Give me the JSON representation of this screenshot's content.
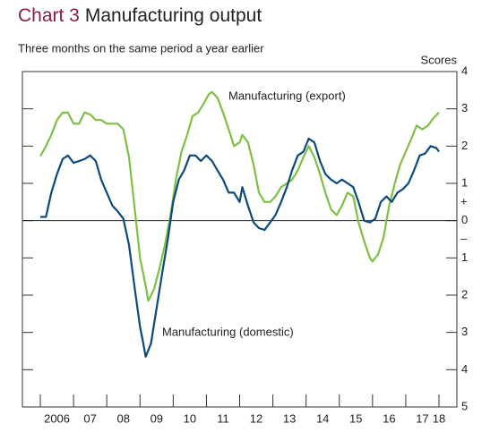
{
  "chart_data": {
    "type": "line",
    "title_number": "Chart 3",
    "title": "Manufacturing output",
    "subtitle": "Three months on the same period a year earlier",
    "y_axis_label": "Scores",
    "positive_sign": "+",
    "negative_sign": "–",
    "xlim": [
      2005.46,
      2018.54
    ],
    "xticks": [
      {
        "value": 2006,
        "label": "2006"
      },
      {
        "value": 2007,
        "label": "07"
      },
      {
        "value": 2008,
        "label": "08"
      },
      {
        "value": 2009,
        "label": "09"
      },
      {
        "value": 2010,
        "label": "10"
      },
      {
        "value": 2011,
        "label": "11"
      },
      {
        "value": 2012,
        "label": "12"
      },
      {
        "value": 2013,
        "label": "13"
      },
      {
        "value": 2014,
        "label": "14"
      },
      {
        "value": 2015,
        "label": "15"
      },
      {
        "value": 2016,
        "label": "16"
      },
      {
        "value": 2017,
        "label": "17"
      },
      {
        "value": 2018,
        "label": "18"
      }
    ],
    "ylim": [
      -5,
      4
    ],
    "yticks": [
      4,
      3,
      2,
      1,
      0,
      {
        "value": -1,
        "label": "1"
      },
      {
        "value": -2,
        "label": "2"
      },
      {
        "value": -3,
        "label": "3"
      },
      {
        "value": -4,
        "label": "4"
      },
      {
        "value": -5,
        "label": "5"
      }
    ],
    "series": [
      {
        "name": "Manufacturing (export)",
        "color": "#7dc142",
        "x": [
          2006.0,
          2006.17,
          2006.33,
          2006.5,
          2006.67,
          2006.83,
          2007.0,
          2007.17,
          2007.33,
          2007.5,
          2007.67,
          2007.83,
          2008.0,
          2008.17,
          2008.33,
          2008.5,
          2008.67,
          2008.83,
          2009.0,
          2009.17,
          2009.25,
          2009.42,
          2009.58,
          2009.75,
          2009.92,
          2010.08,
          2010.25,
          2010.42,
          2010.58,
          2010.75,
          2010.92,
          2011.08,
          2011.17,
          2011.33,
          2011.5,
          2011.67,
          2011.83,
          2012.0,
          2012.08,
          2012.25,
          2012.42,
          2012.58,
          2012.75,
          2012.92,
          2013.08,
          2013.25,
          2013.42,
          2013.58,
          2013.75,
          2013.92,
          2014.08,
          2014.25,
          2014.42,
          2014.58,
          2014.75,
          2014.92,
          2015.08,
          2015.25,
          2015.42,
          2015.58,
          2015.75,
          2015.92,
          2016.0,
          2016.17,
          2016.33,
          2016.5,
          2016.67,
          2016.83,
          2017.0,
          2017.17,
          2017.33,
          2017.5,
          2017.67,
          2017.83,
          2018.0
        ],
        "values": [
          1.73,
          2.0,
          2.3,
          2.7,
          2.9,
          2.9,
          2.6,
          2.6,
          2.9,
          2.85,
          2.7,
          2.7,
          2.6,
          2.6,
          2.6,
          2.45,
          1.7,
          0.4,
          -1.0,
          -1.75,
          -2.15,
          -1.85,
          -1.3,
          -0.65,
          0.15,
          1.1,
          1.85,
          2.3,
          2.8,
          2.9,
          3.15,
          3.4,
          3.45,
          3.3,
          2.9,
          2.45,
          2.0,
          2.1,
          2.3,
          2.1,
          1.5,
          0.75,
          0.5,
          0.5,
          0.65,
          0.9,
          1.0,
          1.1,
          1.35,
          1.7,
          2.0,
          1.7,
          1.25,
          0.75,
          0.3,
          0.15,
          0.4,
          0.75,
          0.65,
          -0.05,
          -0.55,
          -1.0,
          -1.1,
          -0.9,
          -0.45,
          0.4,
          1.0,
          1.5,
          1.85,
          2.2,
          2.55,
          2.45,
          2.55,
          2.75,
          2.9
        ]
      },
      {
        "name": "Manufacturing (domestic)",
        "color": "#0a4a7f",
        "x": [
          2006.0,
          2006.17,
          2006.33,
          2006.5,
          2006.67,
          2006.83,
          2007.0,
          2007.17,
          2007.33,
          2007.5,
          2007.67,
          2007.83,
          2008.0,
          2008.17,
          2008.33,
          2008.5,
          2008.67,
          2008.83,
          2009.0,
          2009.08,
          2009.17,
          2009.33,
          2009.5,
          2009.67,
          2009.83,
          2010.0,
          2010.17,
          2010.33,
          2010.5,
          2010.67,
          2010.83,
          2011.0,
          2011.17,
          2011.33,
          2011.5,
          2011.67,
          2011.83,
          2012.0,
          2012.08,
          2012.25,
          2012.42,
          2012.58,
          2012.75,
          2012.92,
          2013.08,
          2013.25,
          2013.42,
          2013.58,
          2013.75,
          2013.92,
          2014.08,
          2014.25,
          2014.42,
          2014.58,
          2014.75,
          2014.92,
          2015.08,
          2015.25,
          2015.42,
          2015.58,
          2015.75,
          2015.92,
          2016.08,
          2016.25,
          2016.42,
          2016.58,
          2016.75,
          2016.92,
          2017.08,
          2017.25,
          2017.42,
          2017.58,
          2017.75,
          2017.92,
          2018.0
        ],
        "values": [
          0.1,
          0.1,
          0.75,
          1.25,
          1.65,
          1.75,
          1.55,
          1.6,
          1.65,
          1.75,
          1.6,
          1.1,
          0.75,
          0.4,
          0.25,
          0.05,
          -0.65,
          -1.75,
          -2.85,
          -3.2,
          -3.65,
          -3.3,
          -2.35,
          -1.4,
          -0.55,
          0.5,
          1.1,
          1.35,
          1.75,
          1.75,
          1.6,
          1.75,
          1.6,
          1.35,
          1.1,
          0.75,
          0.75,
          0.5,
          0.9,
          0.4,
          -0.05,
          -0.2,
          -0.25,
          -0.05,
          0.15,
          0.5,
          0.9,
          1.35,
          1.75,
          1.85,
          2.2,
          2.1,
          1.6,
          1.25,
          1.1,
          1.0,
          1.1,
          1.0,
          0.9,
          0.5,
          0,
          -0.05,
          0.05,
          0.5,
          0.65,
          0.5,
          0.75,
          0.85,
          1.0,
          1.35,
          1.75,
          1.8,
          2.0,
          1.95,
          1.85
        ]
      }
    ]
  }
}
